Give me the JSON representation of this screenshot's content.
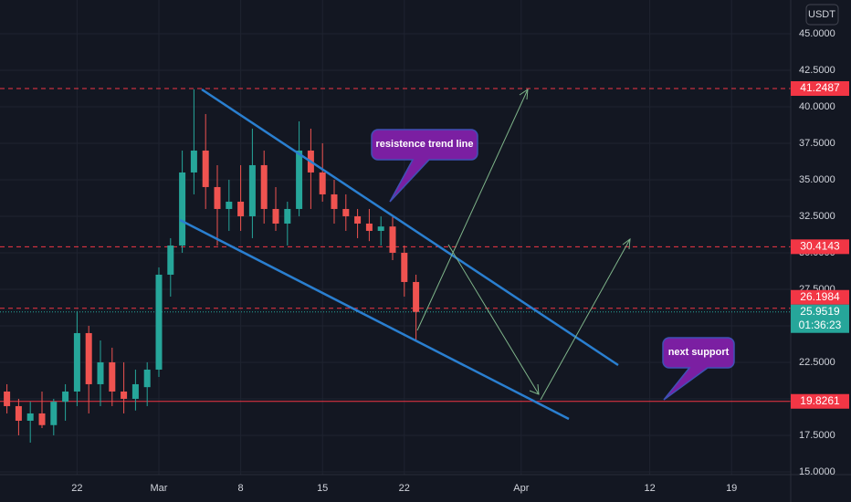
{
  "chart_data": {
    "type": "candlestick",
    "currency": "USDT",
    "x": [
      "Feb 16",
      "Feb 17",
      "Feb 18",
      "Feb 19",
      "Feb 20",
      "Feb 21",
      "Feb 22",
      "Feb 23",
      "Feb 24",
      "Feb 25",
      "Feb 26",
      "Feb 27",
      "Feb 28",
      "Mar 1",
      "Mar 2",
      "Mar 3",
      "Mar 4",
      "Mar 5",
      "Mar 6",
      "Mar 7",
      "Mar 8",
      "Mar 9",
      "Mar 10",
      "Mar 11",
      "Mar 12",
      "Mar 13",
      "Mar 14",
      "Mar 15",
      "Mar 16",
      "Mar 17",
      "Mar 18",
      "Mar 19",
      "Mar 20",
      "Mar 21",
      "Mar 22",
      "Mar 23"
    ],
    "open": [
      20.5,
      19.5,
      18.5,
      19,
      18.2,
      19.8,
      20.5,
      24.5,
      21,
      22.5,
      20.5,
      20,
      20.8,
      22,
      28.5,
      30.5,
      35.5,
      37,
      34.5,
      33,
      33.5,
      32.5,
      36,
      33,
      32,
      33,
      37,
      35.5,
      34,
      33,
      32.5,
      32,
      31.5,
      31.8,
      30,
      28
    ],
    "high": [
      21,
      20,
      19.8,
      20.5,
      20,
      21,
      26,
      25,
      24,
      23.5,
      22.5,
      22,
      22.5,
      29,
      31,
      37,
      41.2,
      39.5,
      36,
      35,
      36,
      38.5,
      37,
      34.5,
      33.5,
      39,
      38.5,
      37.5,
      35,
      34,
      33,
      33,
      32.5,
      32.5,
      30.5,
      28.5
    ],
    "low": [
      19,
      17.5,
      17,
      18,
      17.5,
      18.5,
      19.5,
      19,
      19.5,
      19.5,
      19,
      19.2,
      19.5,
      21.5,
      27,
      30,
      34,
      33,
      30.5,
      31.5,
      31.5,
      31,
      32,
      31.5,
      30.5,
      32.5,
      33,
      33.5,
      32,
      31.5,
      31,
      30.8,
      30.5,
      29.5,
      27,
      24
    ],
    "close": [
      19.5,
      18.5,
      19,
      18.2,
      19.8,
      20.5,
      24.5,
      21,
      22.5,
      20.5,
      20,
      21,
      22,
      28.5,
      30.5,
      35.5,
      37,
      34.5,
      33,
      33.5,
      32.5,
      36,
      33,
      32,
      33,
      37,
      35.5,
      34,
      33,
      32.5,
      32,
      31.5,
      31.8,
      30,
      28,
      25.9519
    ],
    "up_color": "#26a69a",
    "down_color": "#ef5350",
    "ylim": [
      14.81,
      47.31
    ],
    "yticks": [
      {
        "value": 15,
        "label": "15.0000"
      },
      {
        "value": 17.5,
        "label": "17.5000"
      },
      {
        "value": 20,
        "label": "20.0000"
      },
      {
        "value": 22.5,
        "label": "22.5000"
      },
      {
        "value": 25,
        "label": "25.0000"
      },
      {
        "value": 27.5,
        "label": "27.5000"
      },
      {
        "value": 30,
        "label": "30.0000"
      },
      {
        "value": 32.5,
        "label": "32.5000"
      },
      {
        "value": 35,
        "label": "35.0000"
      },
      {
        "value": 37.5,
        "label": "37.5000"
      },
      {
        "value": 40,
        "label": "40.0000"
      },
      {
        "value": 42.5,
        "label": "42.5000"
      },
      {
        "value": 45,
        "label": "45.0000"
      }
    ],
    "xticks": [
      {
        "value": "Feb 22",
        "label": "22"
      },
      {
        "value": "Mar 1",
        "label": "Mar"
      },
      {
        "value": "Mar 8",
        "label": "8"
      },
      {
        "value": "Mar 15",
        "label": "15"
      },
      {
        "value": "Mar 22",
        "label": "22"
      },
      {
        "value": "Apr 1",
        "label": "Apr"
      },
      {
        "value": "Apr 12",
        "label": "12"
      },
      {
        "value": "Apr 19",
        "label": "19"
      }
    ],
    "levels": [
      {
        "value": 41.2487,
        "color": "#f23645",
        "style": "dashed"
      },
      {
        "value": 30.4143,
        "color": "#f23645",
        "style": "dashed"
      },
      {
        "value": 26.1984,
        "color": "#f23645",
        "style": "dashed"
      },
      {
        "value": 19.8261,
        "color": "#f23645",
        "style": "solid"
      }
    ],
    "last_price": {
      "value": 25.9519,
      "countdown": "01:36:23",
      "color": "#26a69a"
    },
    "annotations": [
      "resistence trend line",
      "next support"
    ],
    "grid": true
  }
}
